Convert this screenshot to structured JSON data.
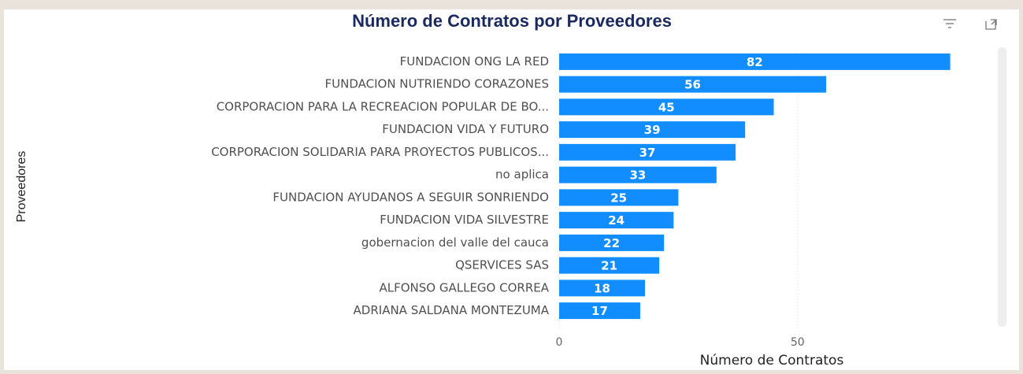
{
  "chart_data": {
    "type": "bar",
    "orientation": "horizontal",
    "title": "Número de Contratos por Proveedores",
    "x_label": "Número de Contratos",
    "y_label": "Proveedores",
    "categories": [
      "FUNDACION ONG LA RED",
      "FUNDACION NUTRIENDO CORAZONES",
      "CORPORACION PARA LA RECREACION POPULAR DE BO...",
      "FUNDACION VIDA Y FUTURO",
      "CORPORACION SOLIDARIA PARA PROYECTOS PUBLICOS...",
      "no aplica",
      "FUNDACION AYUDANOS A SEGUIR SONRIENDO",
      "FUNDACION VIDA SILVESTRE",
      "gobernacion del valle del cauca",
      "QSERVICES SAS",
      "ALFONSO GALLEGO CORREA",
      "ADRIANA SALDANA MONTEZUMA"
    ],
    "values": [
      82,
      56,
      45,
      39,
      37,
      33,
      25,
      24,
      22,
      21,
      18,
      17
    ],
    "color": "#118dff",
    "xlim": [
      0,
      90
    ],
    "xticks": [
      0,
      50
    ],
    "grid": true
  }
}
